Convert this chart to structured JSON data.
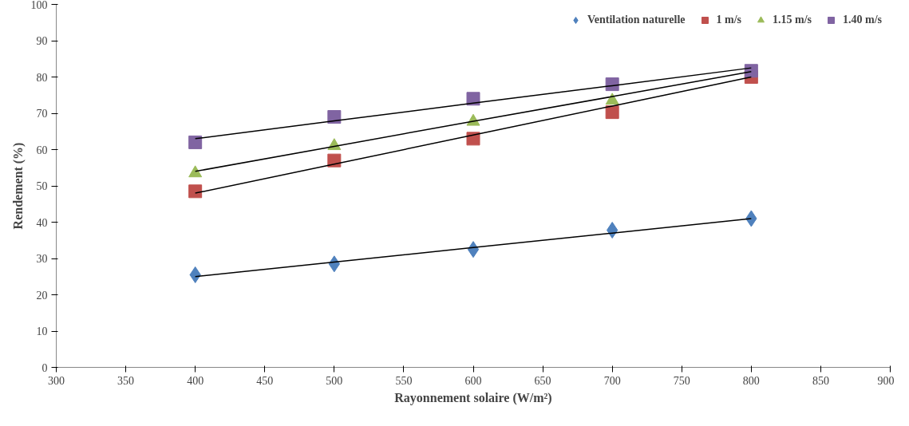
{
  "chart_data": {
    "type": "scatter",
    "xlabel": "Rayonnement solaire (W/m²)",
    "ylabel": "Rendement (%)",
    "xlim": [
      300,
      900
    ],
    "xticks": [
      300,
      350,
      400,
      450,
      500,
      550,
      600,
      650,
      700,
      750,
      800,
      850,
      900
    ],
    "ylim": [
      0,
      100
    ],
    "yticks": [
      0,
      10,
      20,
      30,
      40,
      50,
      60,
      70,
      80,
      90,
      100
    ],
    "grid": false,
    "legend": "top right",
    "x": [
      400,
      500,
      600,
      700,
      800
    ],
    "series": [
      {
        "name": "Ventilation naturelle",
        "color": "#4f81bd",
        "marker": "diamond",
        "values": [
          25.5,
          28.5,
          32.5,
          37.8,
          41
        ]
      },
      {
        "name": "1 m/s",
        "color": "#c0504d",
        "marker": "square",
        "values": [
          48.5,
          57,
          63,
          70.3,
          80
        ]
      },
      {
        "name": "1.15 m/s",
        "color": "#9bbb59",
        "marker": "triangle",
        "values": [
          53.5,
          61,
          67.7,
          73.5,
          null
        ]
      },
      {
        "name": "1.40 m/s",
        "color": "#8064a2",
        "marker": "square",
        "values": [
          62,
          69,
          74,
          78,
          81.7
        ]
      },
      {
        "type": "line",
        "color": "#000000",
        "values": [
          25,
          29,
          33,
          37,
          41
        ]
      },
      {
        "type": "line",
        "color": "#000000",
        "values": [
          48,
          56,
          64,
          72,
          80
        ]
      },
      {
        "type": "line",
        "color": "#000000",
        "values": [
          54,
          60.9,
          67.8,
          74.6,
          81.5
        ]
      },
      {
        "type": "line",
        "color": "#000000",
        "values": [
          63,
          67.9,
          72.8,
          77.6,
          82.5
        ]
      }
    ]
  }
}
